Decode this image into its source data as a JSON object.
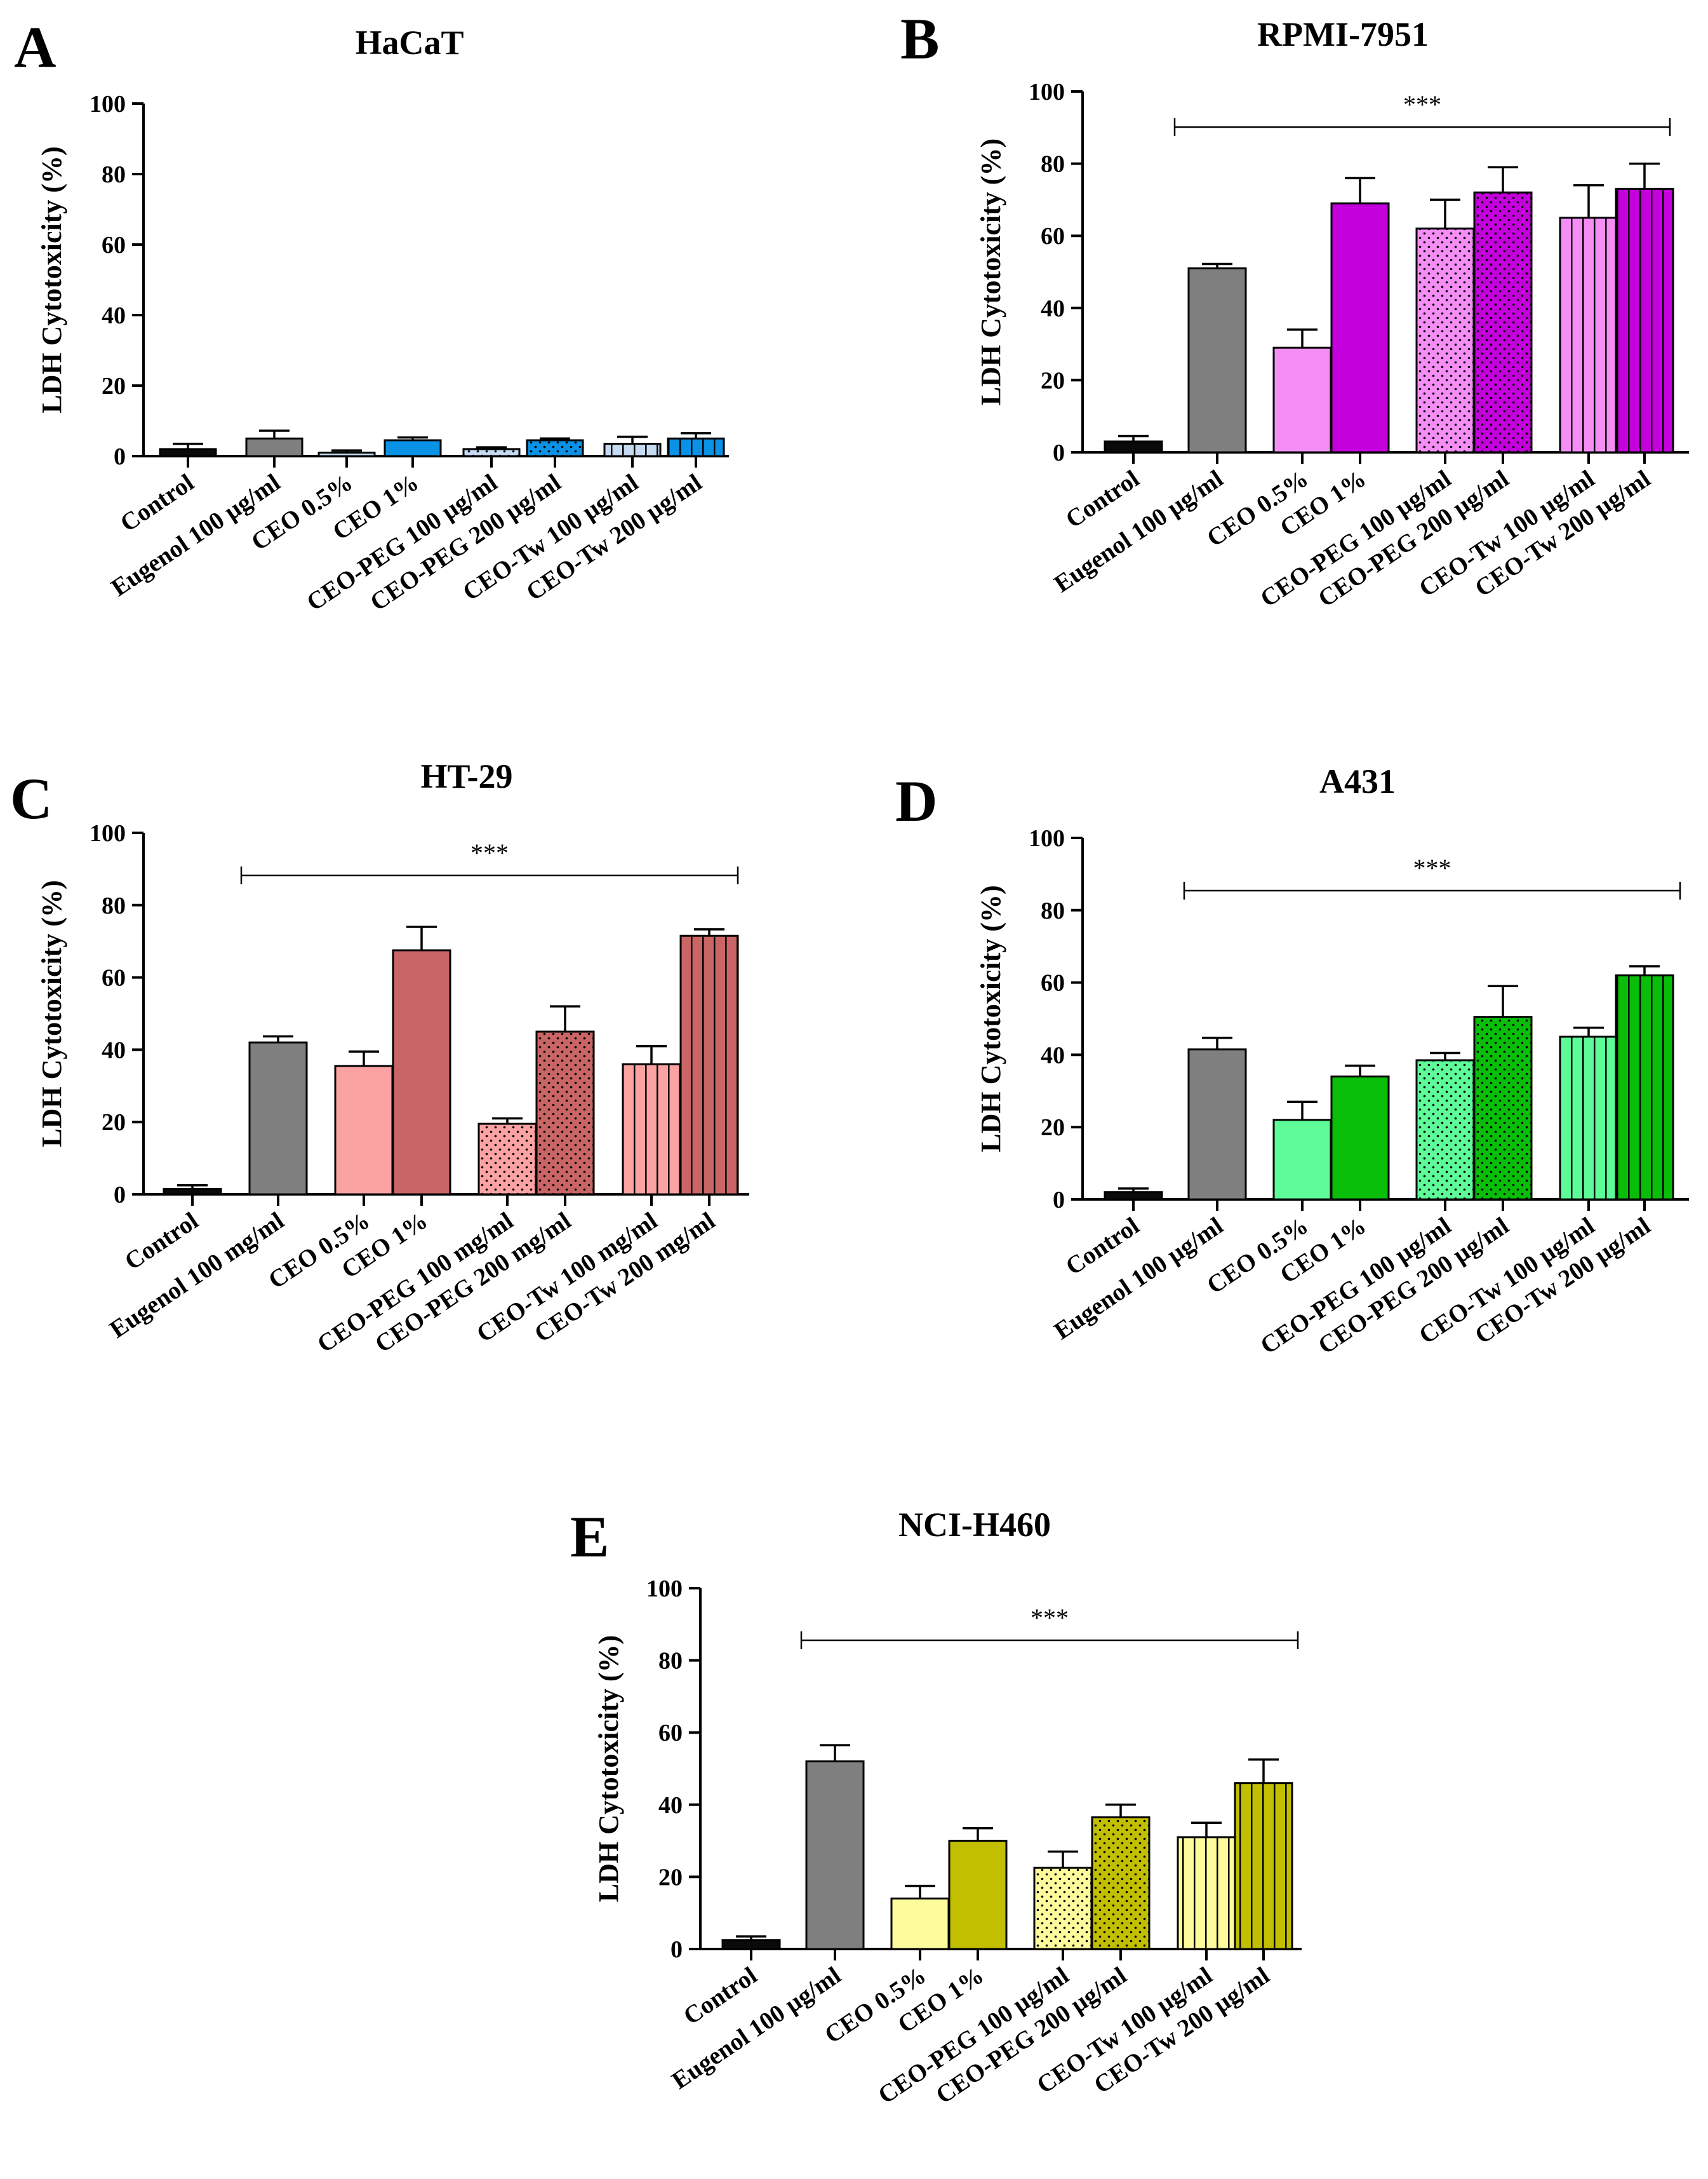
{
  "colors": {
    "control": "#0a0a0a",
    "eugenol": "#7f7f7f",
    "A_light": "#c6daf2",
    "A_dark": "#0a92e6",
    "B_light": "#f48ef5",
    "B_dark": "#c400dc",
    "C_light": "#fba2a2",
    "C_dark": "#c96565",
    "D_light": "#5dfc98",
    "D_dark": "#08be08",
    "E_light": "#fdfb9c",
    "E_dark": "#c1bf00"
  },
  "chart_data": [
    {
      "id": "A",
      "letter": "A",
      "type": "bar",
      "title": "HaCaT",
      "ylabel": "LDH Cytotoxicity (%)",
      "ylim": [
        0,
        100
      ],
      "yticks": [
        "0",
        "20",
        "40",
        "60",
        "80",
        "100"
      ],
      "categories": [
        "Control",
        "Eugenol 100 µg/ml",
        "CEO 0.5%",
        "CEO 1%",
        "CEO-PEG 100  µg/ml",
        "CEO-PEG 200  µg/ml",
        "CEO-Tw 100  µg/ml",
        "CEO-Tw 200 µg/ml"
      ],
      "values": [
        2,
        5,
        1,
        4.5,
        2,
        4.5,
        3.5,
        5
      ],
      "errors": [
        1.5,
        2.2,
        0.6,
        0.8,
        0.5,
        0.5,
        2.0,
        1.5
      ],
      "significance": null
    },
    {
      "id": "B",
      "letter": "B",
      "type": "bar",
      "title": "RPMI-7951",
      "ylabel": "LDH Cytotoxicity (%)",
      "ylim": [
        0,
        100
      ],
      "yticks": [
        "0",
        "20",
        "40",
        "60",
        "80",
        "100"
      ],
      "categories": [
        "Control",
        "Eugenol 100 µg/ml",
        "CEO 0.5%",
        "CEO 1%",
        "CEO-PEG 100 µg/ml",
        "CEO-PEG 200 µg/ml",
        "CEO-Tw 100 µg/ml",
        "CEO-Tw 200 µg/ml"
      ],
      "values": [
        3,
        51,
        29,
        69,
        62,
        72,
        65,
        73
      ],
      "errors": [
        1.5,
        1.2,
        5,
        7,
        8,
        7,
        9,
        7
      ],
      "significance": "***"
    },
    {
      "id": "C",
      "letter": "C",
      "type": "bar",
      "title": "HT-29",
      "ylabel": "LDH Cytotoxicity (%)",
      "ylim": [
        0,
        100
      ],
      "yticks": [
        "0",
        "20",
        "40",
        "60",
        "80",
        "100"
      ],
      "categories": [
        "Control",
        "Eugenol 100 mg/ml",
        "CEO 0.5%",
        "CEO 1%",
        "CEO-PEG 100 mg/ml",
        "CEO-PEG 200 mg/ml",
        "CEO-Tw 100 mg/ml",
        "CEO-Tw 200 mg/ml"
      ],
      "values": [
        1.5,
        42,
        35.5,
        67.5,
        19.5,
        45,
        36,
        71.5
      ],
      "errors": [
        1,
        1.7,
        4,
        6.5,
        1.5,
        7,
        5,
        1.8
      ],
      "significance": "***"
    },
    {
      "id": "D",
      "letter": "D",
      "type": "bar",
      "title": "A431",
      "ylabel": "LDH Cytotoxicity (%)",
      "ylim": [
        0,
        100
      ],
      "yticks": [
        "0",
        "20",
        "40",
        "60",
        "80",
        "100"
      ],
      "categories": [
        "Control",
        "Eugenol 100 µg/ml",
        "CEO 0.5%",
        "CEO 1%",
        "CEO-PEG 100 µg/ml",
        "CEO-PEG 200 µg/ml",
        "CEO-Tw 100 µg/ml",
        "CEO-Tw 200 µg/ml"
      ],
      "values": [
        2,
        41.5,
        22,
        34,
        38.5,
        50.5,
        45,
        62
      ],
      "errors": [
        1,
        3.2,
        5,
        3,
        2,
        8.5,
        2.5,
        2.5
      ],
      "significance": "***"
    },
    {
      "id": "E",
      "letter": "E",
      "type": "bar",
      "title": "NCI-H460",
      "ylabel": "LDH Cytotoxicity (%)",
      "ylim": [
        0,
        100
      ],
      "yticks": [
        "0",
        "20",
        "40",
        "60",
        "80",
        "100"
      ],
      "categories": [
        "Control",
        "Eugenol 100 µg/ml",
        "CEO 0.5%",
        "CEO 1%",
        "CEO-PEG 100 µg/ml",
        "CEO-PEG 200 µg/ml",
        "CEO-Tw 100 µg/ml",
        "CEO-Tw 200 µg/ml"
      ],
      "values": [
        2.5,
        52,
        14,
        30,
        22.5,
        36.5,
        31,
        46
      ],
      "errors": [
        1,
        4.5,
        3.5,
        3.5,
        4.5,
        3.5,
        4,
        6.5
      ],
      "significance": "***"
    }
  ]
}
